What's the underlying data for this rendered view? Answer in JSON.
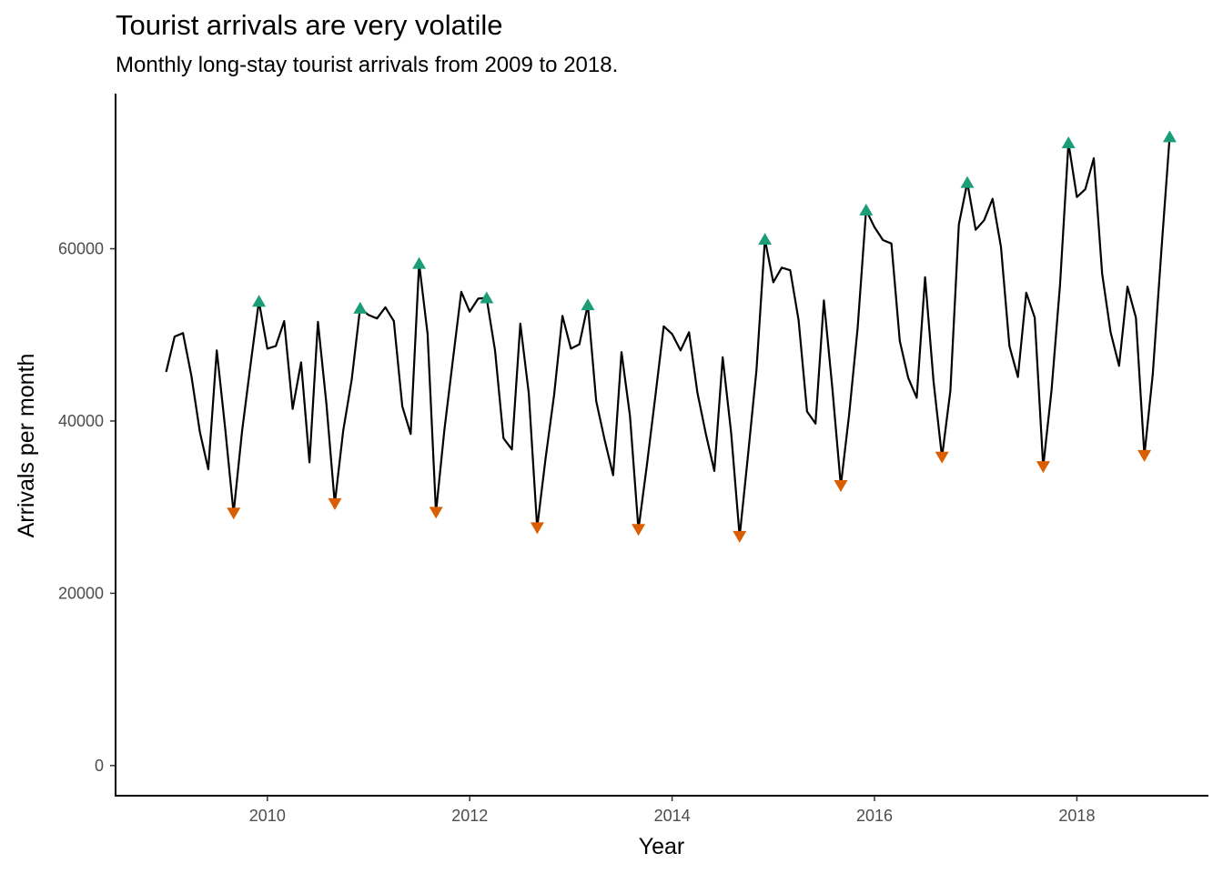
{
  "chart_data": {
    "type": "line",
    "title": "Tourist arrivals are very volatile",
    "subtitle": "Monthly long-stay tourist arrivals from 2009 to 2018.",
    "xlabel": "Year",
    "ylabel": "Arrivals per month",
    "xlim": [
      2008.5,
      2019.3
    ],
    "ylim": [
      -3500,
      78000
    ],
    "x_ticks": [
      2010,
      2012,
      2014,
      2016,
      2018
    ],
    "x_tick_labels": [
      "2010",
      "2012",
      "2014",
      "2016",
      "2018"
    ],
    "y_ticks": [
      0,
      20000,
      40000,
      60000
    ],
    "y_tick_labels": [
      "0",
      "20000",
      "40000",
      "60000"
    ],
    "grid": false,
    "colors": {
      "line": "#000000",
      "peak": "#1b9e77",
      "trough": "#d95f02"
    },
    "series": [
      {
        "start_year": 2009,
        "values": [
          45700,
          49800,
          50200,
          45200,
          38700,
          34400,
          48200,
          39100,
          29300,
          38800,
          46500,
          53900,
          48400,
          48700,
          51600,
          41400,
          46800,
          35200,
          51500,
          42000,
          30400,
          38900,
          44800,
          53100,
          52300,
          51900,
          53200,
          51600,
          41700,
          38500,
          58300,
          50100,
          29400,
          39000,
          47100,
          55000,
          52700,
          54200,
          54300,
          48200,
          38000,
          36700,
          51300,
          43200,
          27600,
          35700,
          43000,
          52200,
          48400,
          48900,
          53500,
          42300,
          37800,
          33700,
          48000,
          40600,
          27400,
          34800,
          42800,
          51000,
          50100,
          48200,
          50300,
          43300,
          38500,
          34200,
          47400,
          38600,
          26600,
          36000,
          45900,
          61100,
          56100,
          57800,
          57500,
          51700,
          41100,
          39700,
          54000,
          43800,
          32500,
          40800,
          50800,
          64500,
          62500,
          61000,
          60600,
          49300,
          45000,
          42700,
          56700,
          44600,
          35800,
          43500,
          62800,
          67700,
          62200,
          63300,
          65800,
          60200,
          48700,
          45100,
          54900,
          52000,
          34700,
          43600,
          55800,
          72300,
          66000,
          66900,
          70500,
          57100,
          50300,
          46400,
          55600,
          52000,
          36000,
          45400,
          59500,
          73000
        ]
      }
    ],
    "peaks": [
      {
        "x": 2009.917,
        "y": 53900
      },
      {
        "x": 2010.917,
        "y": 53100
      },
      {
        "x": 2011.5,
        "y": 58300
      },
      {
        "x": 2012.167,
        "y": 54300
      },
      {
        "x": 2013.167,
        "y": 53500
      },
      {
        "x": 2014.917,
        "y": 61100
      },
      {
        "x": 2015.917,
        "y": 64500
      },
      {
        "x": 2016.917,
        "y": 67700
      },
      {
        "x": 2017.917,
        "y": 72300
      },
      {
        "x": 2018.917,
        "y": 73000
      }
    ],
    "troughs": [
      {
        "x": 2009.667,
        "y": 29300
      },
      {
        "x": 2010.667,
        "y": 30400
      },
      {
        "x": 2011.667,
        "y": 29400
      },
      {
        "x": 2012.667,
        "y": 27600
      },
      {
        "x": 2013.667,
        "y": 27400
      },
      {
        "x": 2014.667,
        "y": 26600
      },
      {
        "x": 2015.667,
        "y": 32500
      },
      {
        "x": 2016.667,
        "y": 35800
      },
      {
        "x": 2017.667,
        "y": 34700
      },
      {
        "x": 2018.667,
        "y": 36000
      }
    ]
  }
}
